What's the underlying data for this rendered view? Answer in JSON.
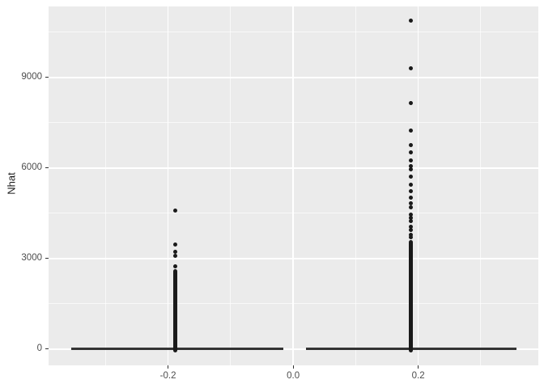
{
  "chart_data": {
    "type": "boxplot",
    "title": "",
    "xlabel": "",
    "ylabel": "Nhat",
    "legend": "none",
    "panel_bg": "#EBEBEB",
    "grid_color": "#FFFFFF",
    "point_color": "#1A1A1A",
    "line_color": "#333333",
    "tick_text_color": "#4D4D4D",
    "xlim": [
      -0.391,
      0.392
    ],
    "ylim": [
      -536,
      11357
    ],
    "x_ticks": [
      {
        "value": -0.2,
        "label": "-0.2"
      },
      {
        "value": 0.0,
        "label": "0.0"
      },
      {
        "value": 0.2,
        "label": "0.2"
      }
    ],
    "y_ticks": [
      {
        "value": 0,
        "label": "0"
      },
      {
        "value": 3000,
        "label": "3000"
      },
      {
        "value": 6000,
        "label": "6000"
      },
      {
        "value": 9000,
        "label": "9000"
      }
    ],
    "x_minor_gridlines": [
      -0.3,
      -0.1,
      0.1,
      0.3
    ],
    "y_minor_gridlines": [
      1500,
      4500,
      7500,
      10500
    ],
    "groups": [
      {
        "name": "group-left",
        "x_center": -0.188,
        "box_span": [
          -0.355,
          -0.016
        ],
        "median": 0,
        "q1": 0,
        "q3": 0,
        "dense_outlier_column": {
          "bottom": -60,
          "top": 2600
        },
        "outliers": [
          2750,
          3090,
          3220,
          3480,
          4590
        ]
      },
      {
        "name": "group-right",
        "x_center": 0.188,
        "box_span": [
          0.02,
          0.357
        ],
        "median": 0,
        "q1": 0,
        "q3": 0,
        "dense_outlier_column": {
          "bottom": -60,
          "top": 3550
        },
        "outliers": [
          3700,
          3800,
          3940,
          4070,
          4250,
          4360,
          4470,
          4700,
          4830,
          5010,
          5230,
          5460,
          5720,
          5950,
          6080,
          6260,
          6530,
          6750,
          7240,
          8150,
          9320,
          10880
        ]
      }
    ]
  }
}
